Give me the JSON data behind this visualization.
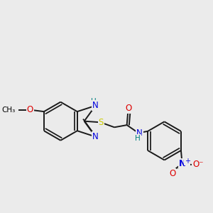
{
  "background_color": "#ebebeb",
  "bond_color": "#1a1a1a",
  "bond_width": 1.4,
  "atom_colors": {
    "C": "#000000",
    "N": "#0000dd",
    "O": "#dd0000",
    "S": "#cccc00",
    "H": "#008080"
  },
  "figsize": [
    3.0,
    3.0
  ],
  "dpi": 100
}
